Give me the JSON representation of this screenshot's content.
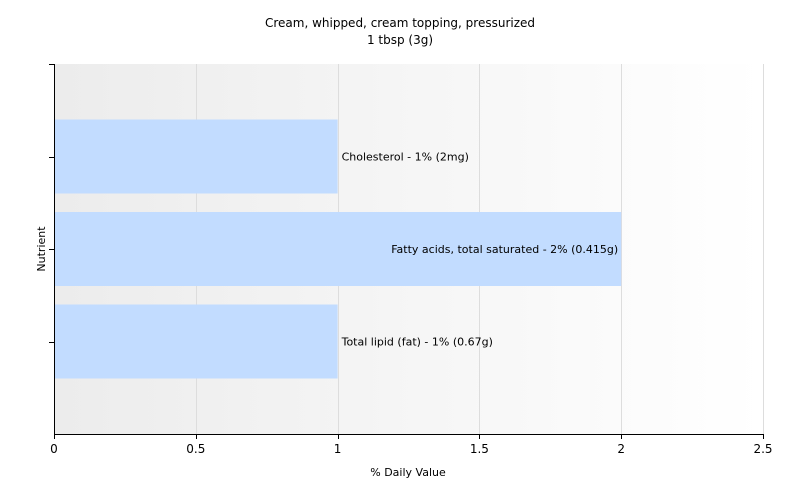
{
  "chart_data": {
    "type": "bar",
    "orientation": "horizontal",
    "title": "Cream, whipped, cream topping, pressurized",
    "subtitle": "1 tbsp (3g)",
    "xlabel": "% Daily Value",
    "ylabel": "Nutrient",
    "xlim": [
      0,
      2.5
    ],
    "xticks": [
      "0",
      "0.5",
      "1",
      "1.5",
      "2",
      "2.5"
    ],
    "grid": true,
    "bar_color": "#c2dcff",
    "categories": [
      "Cholesterol",
      "Fatty acids, total saturated",
      "Total lipid (fat)"
    ],
    "values": [
      1,
      2,
      1
    ],
    "labels": [
      "Cholesterol - 1% (2mg)",
      "Fatty acids, total saturated - 2% (0.415g)",
      "Total lipid (fat) - 1% (0.67g)"
    ]
  }
}
